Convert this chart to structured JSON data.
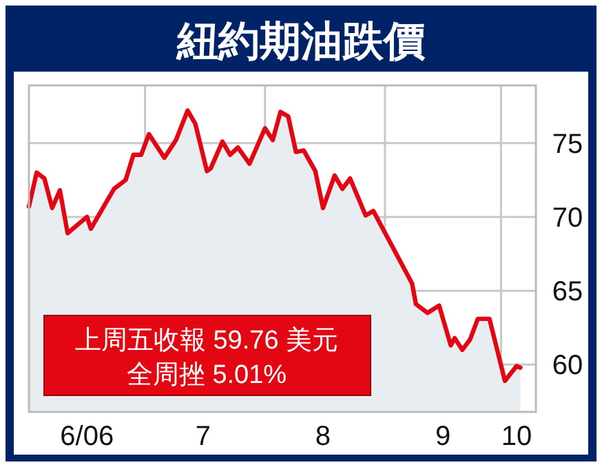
{
  "chart_data": {
    "type": "area",
    "title": "紐約期油跌價",
    "x": [
      "2006-06-01",
      "2006-06-03",
      "2006-06-05",
      "2006-06-07",
      "2006-06-09",
      "2006-06-11",
      "2006-06-16",
      "2006-06-17",
      "2006-06-21",
      "2006-06-23",
      "2006-06-26",
      "2006-06-28",
      "2006-06-30",
      "2006-07-02",
      "2006-07-06",
      "2006-07-09",
      "2006-07-12",
      "2006-07-14",
      "2006-07-17",
      "2006-07-18",
      "2006-07-21",
      "2006-07-23",
      "2006-07-25",
      "2006-07-28",
      "2006-08-01",
      "2006-08-03",
      "2006-08-05",
      "2006-08-07",
      "2006-08-09",
      "2006-08-11",
      "2006-08-14",
      "2006-08-16",
      "2006-08-19",
      "2006-08-21",
      "2006-08-23",
      "2006-08-27",
      "2006-08-29",
      "2006-09-08",
      "2006-09-09",
      "2006-09-12",
      "2006-09-15",
      "2006-09-18",
      "2006-09-19",
      "2006-09-21",
      "2006-09-23",
      "2006-09-25",
      "2006-09-28",
      "2006-10-02",
      "2006-10-05",
      "2006-10-06"
    ],
    "series": [
      {
        "color": "#e30613",
        "values": [
          70.7,
          73.0,
          72.6,
          70.6,
          71.8,
          68.9,
          70.0,
          69.2,
          71.0,
          71.9,
          72.5,
          74.2,
          74.2,
          75.6,
          74.0,
          75.2,
          77.2,
          76.3,
          73.1,
          73.3,
          75.1,
          74.2,
          74.7,
          73.6,
          76.0,
          75.2,
          77.1,
          76.8,
          74.4,
          74.5,
          73.1,
          70.6,
          72.8,
          71.9,
          72.6,
          70.1,
          70.4,
          65.5,
          64.1,
          63.5,
          64.0,
          61.3,
          61.8,
          61.0,
          61.7,
          63.1,
          63.1,
          58.9,
          59.9,
          59.8
        ]
      }
    ],
    "xlim": [
      "2006-06-01",
      "2006-10-10"
    ],
    "xticks": [
      {
        "value": "2006-06-16",
        "label": "6/06"
      },
      {
        "value": "2006-07-01",
        "label": null
      },
      {
        "value": "2006-07-16",
        "label": "7"
      },
      {
        "value": "2006-08-01",
        "label": null
      },
      {
        "value": "2006-08-16",
        "label": "8"
      },
      {
        "value": "2006-09-01",
        "label": null
      },
      {
        "value": "2006-09-16",
        "label": "9"
      },
      {
        "value": "2006-10-01",
        "label": null
      },
      {
        "value": "2006-10-05",
        "label": "10"
      }
    ],
    "ylim": [
      56.8,
      78.9
    ],
    "yticks": [
      60,
      65,
      70,
      75
    ],
    "grid": true,
    "annotations": [
      "上周五收報 59.76 美元",
      "全周挫 5.01%"
    ]
  }
}
